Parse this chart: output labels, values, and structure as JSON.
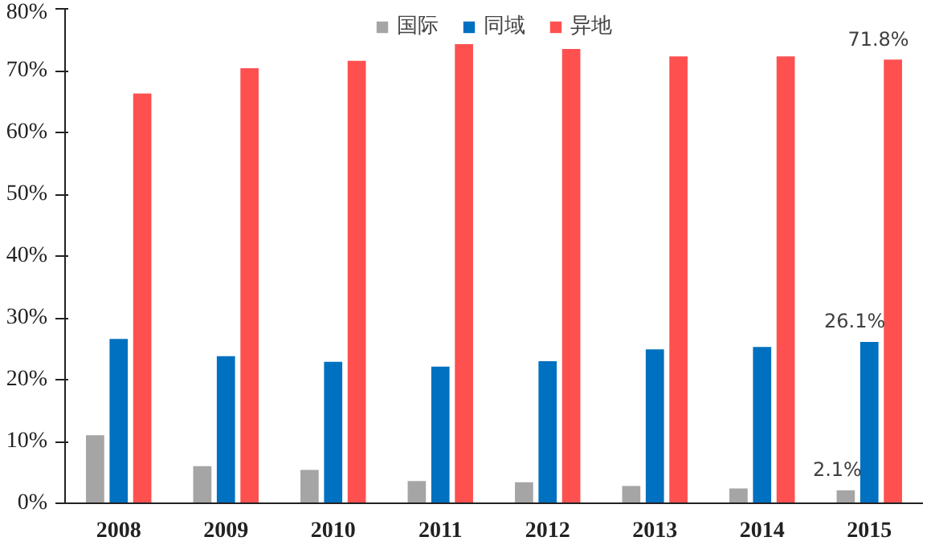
{
  "chart_data": {
    "type": "bar",
    "categories": [
      "2008",
      "2009",
      "2010",
      "2011",
      "2012",
      "2013",
      "2014",
      "2015"
    ],
    "series": [
      {
        "name": "国际",
        "color": "#a5a5a5",
        "values": [
          11.0,
          6.0,
          5.4,
          3.6,
          3.4,
          2.8,
          2.4,
          2.1
        ],
        "value_labels": [
          null,
          null,
          null,
          null,
          null,
          null,
          null,
          "2.1%"
        ]
      },
      {
        "name": "同域",
        "color": "#0070c0",
        "values": [
          26.6,
          23.8,
          22.9,
          22.1,
          23.0,
          24.9,
          25.3,
          26.1
        ],
        "value_labels": [
          null,
          null,
          null,
          null,
          null,
          null,
          null,
          "26.1%"
        ]
      },
      {
        "name": "异地",
        "color": "#ff5050",
        "values": [
          66.3,
          70.4,
          71.6,
          74.3,
          73.5,
          72.3,
          72.3,
          71.8
        ],
        "value_labels": [
          null,
          null,
          null,
          null,
          null,
          null,
          null,
          "71.8%"
        ]
      }
    ],
    "ylim": [
      0,
      80
    ],
    "yticks": [
      {
        "value": 0,
        "label": "0%"
      },
      {
        "value": 10,
        "label": "10%"
      },
      {
        "value": 20,
        "label": "20%"
      },
      {
        "value": 30,
        "label": "30%"
      },
      {
        "value": 40,
        "label": "40%"
      },
      {
        "value": 50,
        "label": "50%"
      },
      {
        "value": 60,
        "label": "60%"
      },
      {
        "value": 70,
        "label": "70%"
      },
      {
        "value": 80,
        "label": "80%"
      }
    ],
    "legend": "top",
    "grid": false
  }
}
